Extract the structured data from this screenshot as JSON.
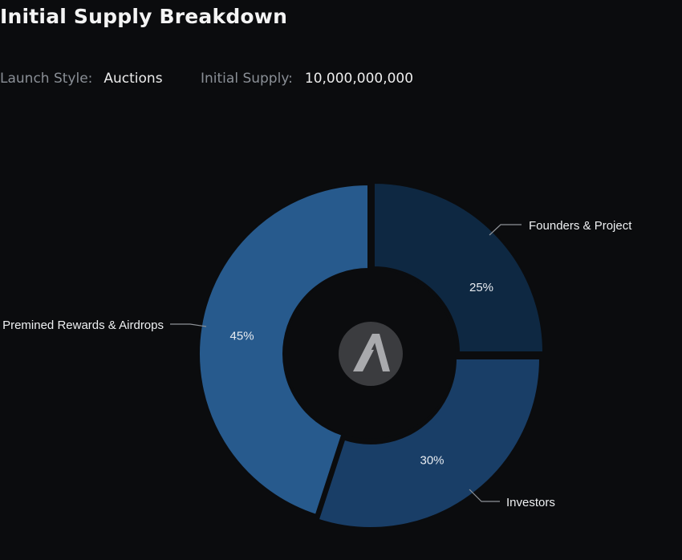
{
  "header": {
    "title": "Initial Supply Breakdown",
    "launch_style_label": "Launch Style:",
    "launch_style_value": "Auctions",
    "initial_supply_label": "Initial Supply:",
    "initial_supply_value": "10,000,000,000"
  },
  "center_logo": {
    "icon": "algorand-logo-icon"
  },
  "colors": {
    "background": "#0b0c0e",
    "founders": "#0e2842",
    "investors": "#193e67",
    "rewards": "#275a8d",
    "hole": "#0b0c0e",
    "logo_circle": "#3b3c3f",
    "logo_mark": "#a9aaad",
    "leader_line": "#8e9297"
  },
  "chart_data": {
    "type": "pie",
    "donut": true,
    "categories": [
      "Founders & Project",
      "Investors",
      "Premined Rewards & Airdrops"
    ],
    "values": [
      25,
      30,
      45
    ],
    "value_labels": [
      "25%",
      "30%",
      "45%"
    ],
    "label_placement": "outside with leader lines"
  }
}
